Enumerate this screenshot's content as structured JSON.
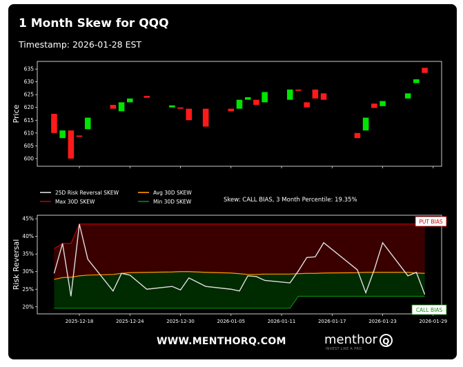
{
  "title": "1 Month Skew for QQQ",
  "timestamp": "Timestamp: 2026-01-28 EST",
  "footer": {
    "url": "WWW.MENTHORQ.COM",
    "brand": "menthor",
    "brand_mark": "Q",
    "tagline": "INVEST LIKE A PRO"
  },
  "colors": {
    "background": "#000000",
    "up": "#00e400",
    "down": "#ff1a1a",
    "risk_reversal": "#e0e0e0",
    "avg": "#ff9a00",
    "max": "#8b0000",
    "min": "#0a5c0a",
    "put_zone": "#3a0000",
    "call_zone": "#002a00"
  },
  "chart_data": [
    {
      "type": "candlestick",
      "ylabel": "Price",
      "ylim": [
        597,
        638
      ],
      "yticks": [
        600,
        605,
        610,
        615,
        620,
        625,
        630,
        635
      ],
      "candles": [
        {
          "x": "2025-12-15",
          "open": 617.5,
          "close": 610.0
        },
        {
          "x": "2025-12-16",
          "open": 608.0,
          "close": 611.0
        },
        {
          "x": "2025-12-17",
          "open": 611.0,
          "close": 600.0
        },
        {
          "x": "2025-12-18",
          "open": 609.0,
          "close": 608.5
        },
        {
          "x": "2025-12-19",
          "open": 611.5,
          "close": 616.0
        },
        {
          "x": "2025-12-22",
          "open": 621.0,
          "close": 619.5
        },
        {
          "x": "2025-12-23",
          "open": 618.5,
          "close": 622.0
        },
        {
          "x": "2025-12-24",
          "open": 622.0,
          "close": 623.5
        },
        {
          "x": "2025-12-26",
          "open": 624.5,
          "close": 623.8
        },
        {
          "x": "2025-12-29",
          "open": 620.0,
          "close": 620.8
        },
        {
          "x": "2025-12-30",
          "open": 620.0,
          "close": 619.5
        },
        {
          "x": "2025-12-31",
          "open": 619.5,
          "close": 615.0
        },
        {
          "x": "2026-01-02",
          "open": 619.5,
          "close": 612.5
        },
        {
          "x": "2026-01-05",
          "open": 619.5,
          "close": 618.5
        },
        {
          "x": "2026-01-06",
          "open": 619.5,
          "close": 623.0
        },
        {
          "x": "2026-01-07",
          "open": 623.0,
          "close": 624.0
        },
        {
          "x": "2026-01-08",
          "open": 623.0,
          "close": 621.0
        },
        {
          "x": "2026-01-09",
          "open": 622.0,
          "close": 626.0
        },
        {
          "x": "2026-01-12",
          "open": 623.0,
          "close": 627.0
        },
        {
          "x": "2026-01-13",
          "open": 627.0,
          "close": 626.5
        },
        {
          "x": "2026-01-14",
          "open": 622.0,
          "close": 620.0
        },
        {
          "x": "2026-01-15",
          "open": 627.0,
          "close": 623.5
        },
        {
          "x": "2026-01-16",
          "open": 625.5,
          "close": 623.0
        },
        {
          "x": "2026-01-20",
          "open": 610.0,
          "close": 608.0
        },
        {
          "x": "2026-01-21",
          "open": 611.0,
          "close": 616.0
        },
        {
          "x": "2026-01-22",
          "open": 621.5,
          "close": 619.8
        },
        {
          "x": "2026-01-23",
          "open": 620.5,
          "close": 622.5
        },
        {
          "x": "2026-01-26",
          "open": 623.5,
          "close": 625.5
        },
        {
          "x": "2026-01-27",
          "open": 629.5,
          "close": 631.0
        },
        {
          "x": "2026-01-28",
          "open": 635.5,
          "close": 633.5
        }
      ]
    },
    {
      "type": "line",
      "ylabel": "Risk Reversal",
      "ylim": [
        18,
        46
      ],
      "yticks": [
        "20%",
        "25%",
        "30%",
        "35%",
        "40%",
        "45%"
      ],
      "ytick_values": [
        20,
        25,
        30,
        35,
        40,
        45
      ],
      "xticks": [
        "2025-12-18",
        "2025-12-24",
        "2025-12-30",
        "2026-01-05",
        "2026-01-11",
        "2026-01-17",
        "2026-01-23",
        "2026-01-29"
      ],
      "xlim": [
        "2025-12-13",
        "2026-01-30"
      ],
      "annotation": "Skew: CALL BIAS, 3 Month Percentile: 19.35%",
      "zone_labels": {
        "top": "PUT BIAS",
        "bottom": "CALL BIAS"
      },
      "legend": [
        "25D Risk Reversal SKEW",
        "Avg 30D SKEW",
        "Max 30D SKEW",
        "Min 30D SKEW"
      ],
      "x": [
        "2025-12-15",
        "2025-12-16",
        "2025-12-17",
        "2025-12-18",
        "2025-12-19",
        "2025-12-22",
        "2025-12-23",
        "2025-12-24",
        "2025-12-26",
        "2025-12-29",
        "2025-12-30",
        "2025-12-31",
        "2026-01-02",
        "2026-01-05",
        "2026-01-06",
        "2026-01-07",
        "2026-01-08",
        "2026-01-09",
        "2026-01-12",
        "2026-01-13",
        "2026-01-14",
        "2026-01-15",
        "2026-01-16",
        "2026-01-20",
        "2026-01-21",
        "2026-01-22",
        "2026-01-23",
        "2026-01-26",
        "2026-01-27",
        "2026-01-28"
      ],
      "series": [
        {
          "name": "25D Risk Reversal SKEW",
          "values": [
            29.5,
            38.0,
            23.0,
            43.5,
            33.5,
            24.5,
            29.5,
            29.0,
            25.0,
            25.8,
            24.8,
            28.2,
            25.8,
            25.0,
            24.5,
            28.8,
            28.6,
            27.5,
            26.8,
            30.2,
            34.0,
            34.2,
            38.2,
            30.5,
            24.0,
            30.5,
            38.2,
            28.8,
            29.8,
            23.5
          ]
        },
        {
          "name": "Avg 30D SKEW",
          "values": [
            27.8,
            28.3,
            28.4,
            28.8,
            29.0,
            29.2,
            29.5,
            29.7,
            29.8,
            29.9,
            30.0,
            30.0,
            29.8,
            29.6,
            29.4,
            29.2,
            29.2,
            29.3,
            29.3,
            29.4,
            29.5,
            29.5,
            29.6,
            29.7,
            29.8,
            29.8,
            29.8,
            29.8,
            29.6,
            29.5
          ]
        },
        {
          "name": "Max 30D SKEW",
          "values": [
            36.5,
            38.0,
            38.0,
            43.5,
            43.5,
            43.5,
            43.5,
            43.5,
            43.5,
            43.5,
            43.5,
            43.5,
            43.5,
            43.5,
            43.5,
            43.5,
            43.5,
            43.5,
            43.5,
            43.5,
            43.5,
            43.5,
            43.5,
            43.5,
            43.5,
            43.5,
            43.5,
            43.5,
            43.5,
            43.5
          ]
        },
        {
          "name": "Min 30D SKEW",
          "values": [
            19.6,
            19.6,
            19.6,
            19.6,
            19.6,
            19.6,
            19.6,
            19.6,
            19.6,
            19.6,
            19.6,
            19.6,
            19.6,
            19.6,
            19.6,
            19.6,
            19.6,
            19.6,
            19.6,
            23.0,
            23.0,
            23.0,
            23.0,
            23.0,
            23.0,
            23.0,
            23.0,
            23.0,
            23.0,
            23.0
          ]
        }
      ]
    }
  ]
}
